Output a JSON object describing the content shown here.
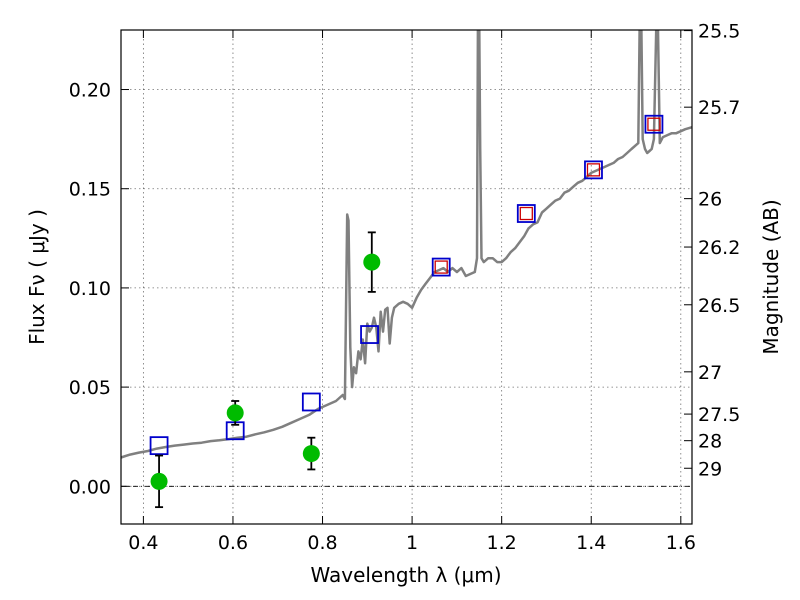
{
  "chart_data": {
    "type": "scatter",
    "xlabel": "Wavelength  λ (μm)",
    "ylabel": "Flux  Fν  ( μJy )",
    "y2label": "Magnitude (AB)",
    "xlim": [
      0.35,
      1.625
    ],
    "ylim": [
      -0.019,
      0.23
    ],
    "grid": true,
    "x_ticks": [
      0.4,
      0.6,
      0.8,
      1.0,
      1.2,
      1.4,
      1.6
    ],
    "x_tick_labels": [
      "0.4",
      "0.6",
      "0.8",
      "1",
      "1.2",
      "1.4",
      "1.6"
    ],
    "y_ticks": [
      0.0,
      0.05,
      0.1,
      0.15,
      0.2
    ],
    "y_tick_labels": [
      "0.00",
      "0.05",
      "0.10",
      "0.15",
      "0.20"
    ],
    "y2_ticks": [
      {
        "label": "25.5",
        "flux": 0.2297
      },
      {
        "label": "25.7",
        "flux": 0.1911
      },
      {
        "label": "26",
        "flux": 0.145
      },
      {
        "label": "26.2",
        "flux": 0.1206
      },
      {
        "label": "26.5",
        "flux": 0.0915
      },
      {
        "label": "27",
        "flux": 0.0577
      },
      {
        "label": "27.5",
        "flux": 0.0364
      },
      {
        "label": "28",
        "flux": 0.023
      },
      {
        "label": "29",
        "flux": 0.0091
      }
    ],
    "series": [
      {
        "kind": "line",
        "color": "#808080",
        "points": [
          [
            0.35,
            0.0145
          ],
          [
            0.37,
            0.016
          ],
          [
            0.39,
            0.017
          ],
          [
            0.41,
            0.0178
          ],
          [
            0.43,
            0.019
          ],
          [
            0.45,
            0.0198
          ],
          [
            0.47,
            0.0205
          ],
          [
            0.49,
            0.021
          ],
          [
            0.51,
            0.0216
          ],
          [
            0.53,
            0.022
          ],
          [
            0.55,
            0.0228
          ],
          [
            0.57,
            0.0232
          ],
          [
            0.59,
            0.0238
          ],
          [
            0.61,
            0.0245
          ],
          [
            0.63,
            0.025
          ],
          [
            0.65,
            0.0262
          ],
          [
            0.67,
            0.0272
          ],
          [
            0.69,
            0.0285
          ],
          [
            0.71,
            0.03
          ],
          [
            0.73,
            0.032
          ],
          [
            0.75,
            0.034
          ],
          [
            0.77,
            0.036
          ],
          [
            0.79,
            0.039
          ],
          [
            0.81,
            0.041
          ],
          [
            0.83,
            0.043
          ],
          [
            0.845,
            0.046
          ],
          [
            0.85,
            0.044
          ],
          [
            0.855,
            0.137
          ],
          [
            0.858,
            0.134
          ],
          [
            0.862,
            0.07
          ],
          [
            0.866,
            0.05
          ],
          [
            0.87,
            0.06
          ],
          [
            0.875,
            0.057
          ],
          [
            0.88,
            0.068
          ],
          [
            0.885,
            0.064
          ],
          [
            0.89,
            0.074
          ],
          [
            0.895,
            0.062
          ],
          [
            0.9,
            0.082
          ],
          [
            0.905,
            0.078
          ],
          [
            0.91,
            0.08
          ],
          [
            0.915,
            0.085
          ],
          [
            0.92,
            0.08
          ],
          [
            0.925,
            0.068
          ],
          [
            0.93,
            0.088
          ],
          [
            0.935,
            0.078
          ],
          [
            0.94,
            0.089
          ],
          [
            0.945,
            0.09
          ],
          [
            0.95,
            0.072
          ],
          [
            0.955,
            0.085
          ],
          [
            0.96,
            0.09
          ],
          [
            0.97,
            0.092
          ],
          [
            0.98,
            0.093
          ],
          [
            0.99,
            0.092
          ],
          [
            1.0,
            0.09
          ],
          [
            1.01,
            0.095
          ],
          [
            1.02,
            0.099
          ],
          [
            1.03,
            0.102
          ],
          [
            1.04,
            0.105
          ],
          [
            1.05,
            0.108
          ],
          [
            1.06,
            0.109
          ],
          [
            1.07,
            0.11
          ],
          [
            1.08,
            0.108
          ],
          [
            1.09,
            0.11
          ],
          [
            1.1,
            0.108
          ],
          [
            1.11,
            0.11
          ],
          [
            1.12,
            0.106
          ],
          [
            1.13,
            0.107
          ],
          [
            1.14,
            0.108
          ],
          [
            1.145,
            0.115
          ],
          [
            1.147,
            0.23
          ],
          [
            1.15,
            0.23
          ],
          [
            1.152,
            0.17
          ],
          [
            1.155,
            0.115
          ],
          [
            1.16,
            0.113
          ],
          [
            1.17,
            0.115
          ],
          [
            1.18,
            0.115
          ],
          [
            1.19,
            0.113
          ],
          [
            1.2,
            0.113
          ],
          [
            1.21,
            0.115
          ],
          [
            1.22,
            0.118
          ],
          [
            1.23,
            0.12
          ],
          [
            1.24,
            0.123
          ],
          [
            1.25,
            0.126
          ],
          [
            1.26,
            0.13
          ],
          [
            1.27,
            0.132
          ],
          [
            1.28,
            0.133
          ],
          [
            1.29,
            0.138
          ],
          [
            1.3,
            0.14
          ],
          [
            1.31,
            0.142
          ],
          [
            1.32,
            0.144
          ],
          [
            1.33,
            0.145
          ],
          [
            1.34,
            0.148
          ],
          [
            1.35,
            0.149
          ],
          [
            1.36,
            0.151
          ],
          [
            1.37,
            0.153
          ],
          [
            1.38,
            0.154
          ],
          [
            1.39,
            0.156
          ],
          [
            1.4,
            0.158
          ],
          [
            1.41,
            0.159
          ],
          [
            1.42,
            0.16
          ],
          [
            1.43,
            0.161
          ],
          [
            1.44,
            0.162
          ],
          [
            1.45,
            0.163
          ],
          [
            1.46,
            0.165
          ],
          [
            1.47,
            0.166
          ],
          [
            1.48,
            0.168
          ],
          [
            1.49,
            0.17
          ],
          [
            1.5,
            0.172
          ],
          [
            1.505,
            0.173
          ],
          [
            1.508,
            0.23
          ],
          [
            1.512,
            0.23
          ],
          [
            1.515,
            0.175
          ],
          [
            1.52,
            0.17
          ],
          [
            1.525,
            0.168
          ],
          [
            1.53,
            0.169
          ],
          [
            1.535,
            0.17
          ],
          [
            1.54,
            0.175
          ],
          [
            1.545,
            0.23
          ],
          [
            1.549,
            0.23
          ],
          [
            1.553,
            0.173
          ],
          [
            1.56,
            0.176
          ],
          [
            1.57,
            0.177
          ],
          [
            1.58,
            0.178
          ],
          [
            1.59,
            0.178
          ],
          [
            1.6,
            0.179
          ],
          [
            1.61,
            0.18
          ],
          [
            1.625,
            0.181
          ]
        ]
      },
      {
        "kind": "observed",
        "color": "#00bb00",
        "points": [
          {
            "x": 0.435,
            "y": 0.0025,
            "err": 0.013
          },
          {
            "x": 0.605,
            "y": 0.037,
            "err": 0.006
          },
          {
            "x": 0.775,
            "y": 0.0165,
            "err": 0.008
          },
          {
            "x": 0.91,
            "y": 0.113,
            "err": 0.015
          }
        ]
      },
      {
        "kind": "model-squares",
        "color": "#0000cc",
        "points": [
          [
            0.435,
            0.0205
          ],
          [
            0.605,
            0.028
          ],
          [
            0.775,
            0.0425
          ],
          [
            0.905,
            0.0765
          ],
          [
            1.065,
            0.1105
          ],
          [
            1.255,
            0.1375
          ],
          [
            1.405,
            0.1595
          ],
          [
            1.54,
            0.1825
          ]
        ]
      },
      {
        "kind": "inner-squares",
        "color": "#cc0000",
        "points": [
          [
            1.065,
            0.1105
          ],
          [
            1.255,
            0.1375
          ],
          [
            1.405,
            0.1595
          ],
          [
            1.54,
            0.1825
          ]
        ]
      }
    ]
  }
}
